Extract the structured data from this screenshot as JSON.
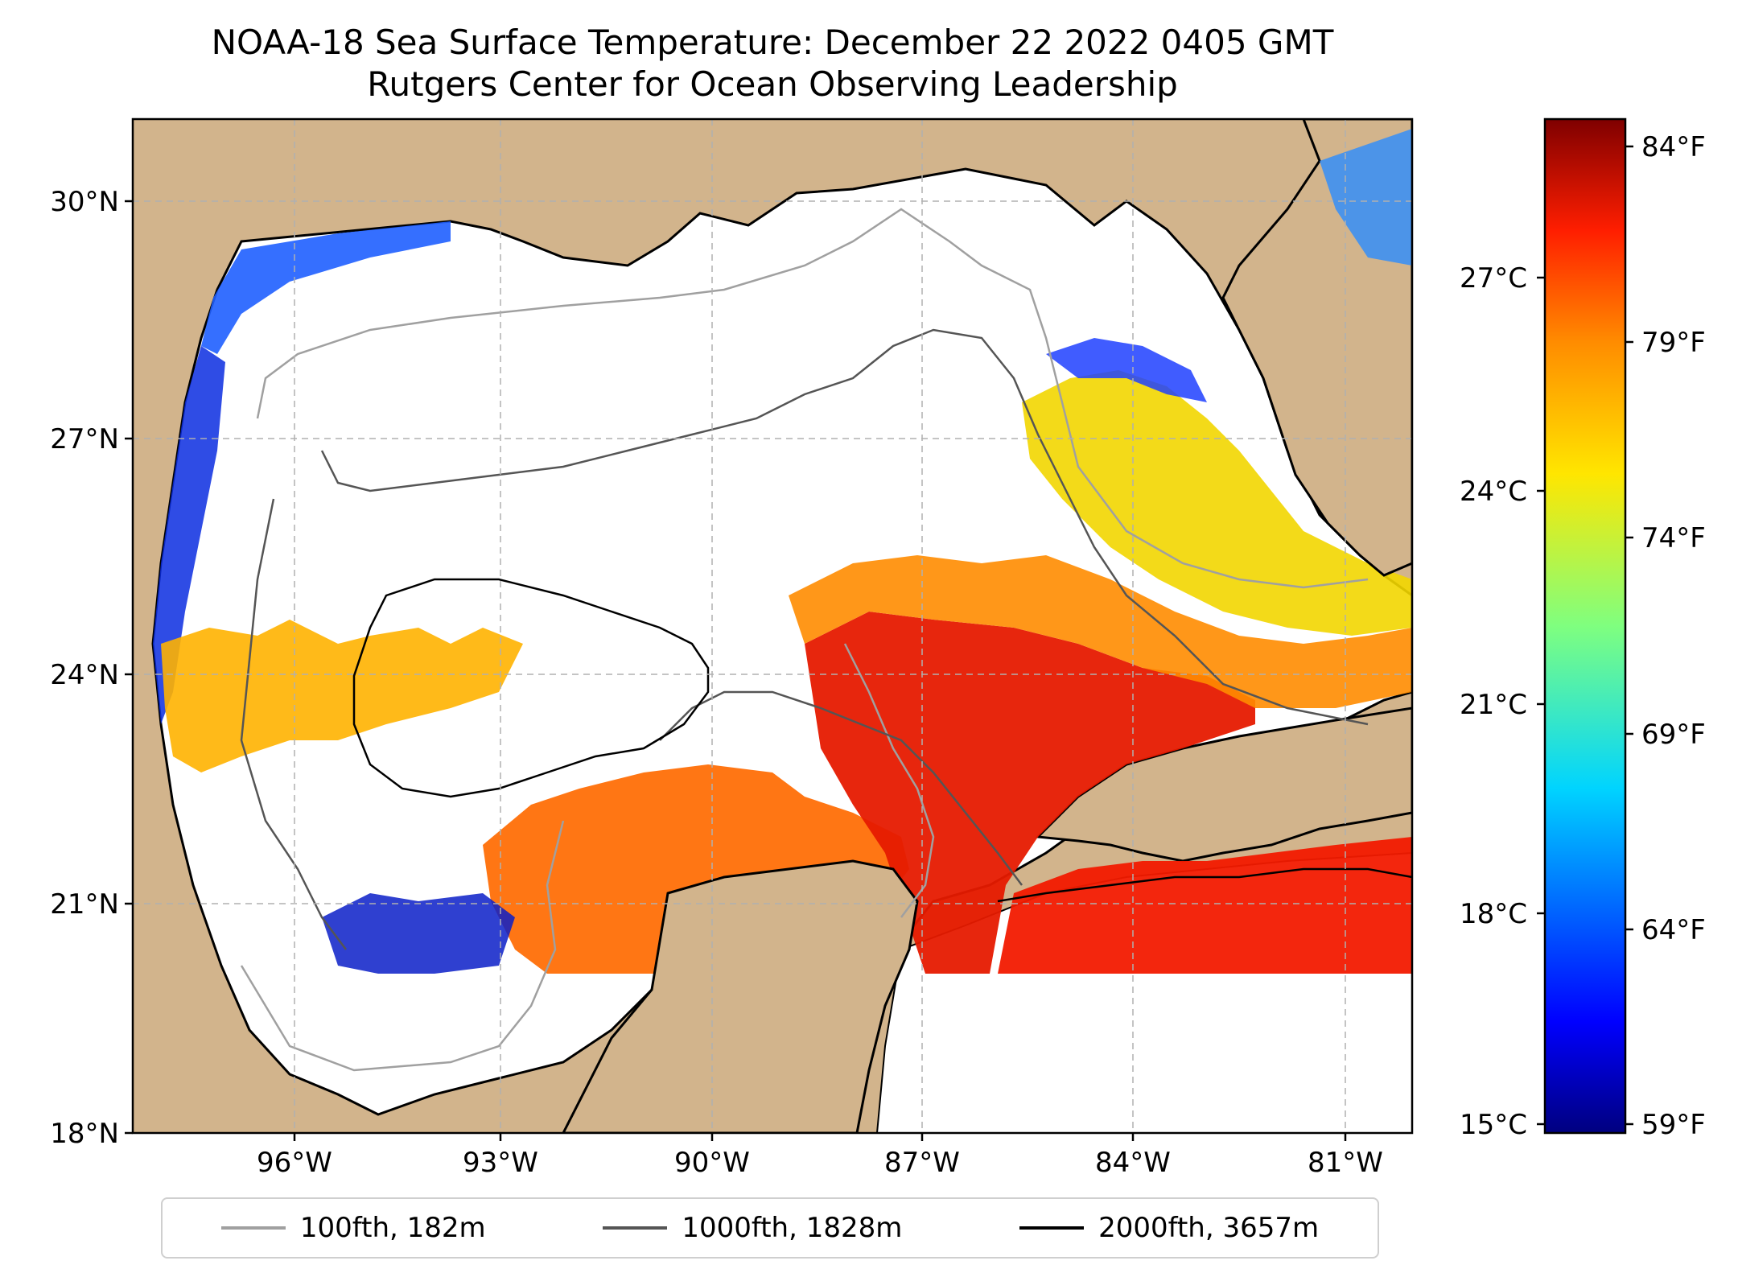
{
  "title": {
    "line1": "NOAA-18 Sea Surface Temperature: December 22 2022 0405 GMT",
    "line2": "Rutgers Center for Ocean Observing Leadership"
  },
  "map": {
    "lat_ticks": [
      "30°N",
      "27°N",
      "24°N",
      "21°N",
      "18°N"
    ],
    "lon_ticks": [
      "96°W",
      "93°W",
      "90°W",
      "87°W",
      "84°W",
      "81°W"
    ],
    "colors": {
      "land": "#d2b48c",
      "no_data": "#ffffff",
      "coast": "#000000",
      "contour_100": "#a0a0a0",
      "contour_1000": "#555555",
      "contour_2000": "#000000"
    }
  },
  "colorbar": {
    "celsius_ticks": [
      "27°C",
      "24°C",
      "21°C",
      "18°C",
      "15°C"
    ],
    "fahrenheit_ticks": [
      "84°F",
      "79°F",
      "74°F",
      "69°F",
      "64°F",
      "59°F"
    ],
    "colormap": "jet"
  },
  "legend": {
    "items": [
      {
        "label": "100fth, 182m",
        "color": "#a0a0a0"
      },
      {
        "label": "1000fth, 1828m",
        "color": "#555555"
      },
      {
        "label": "2000fth, 3657m",
        "color": "#000000"
      }
    ]
  }
}
